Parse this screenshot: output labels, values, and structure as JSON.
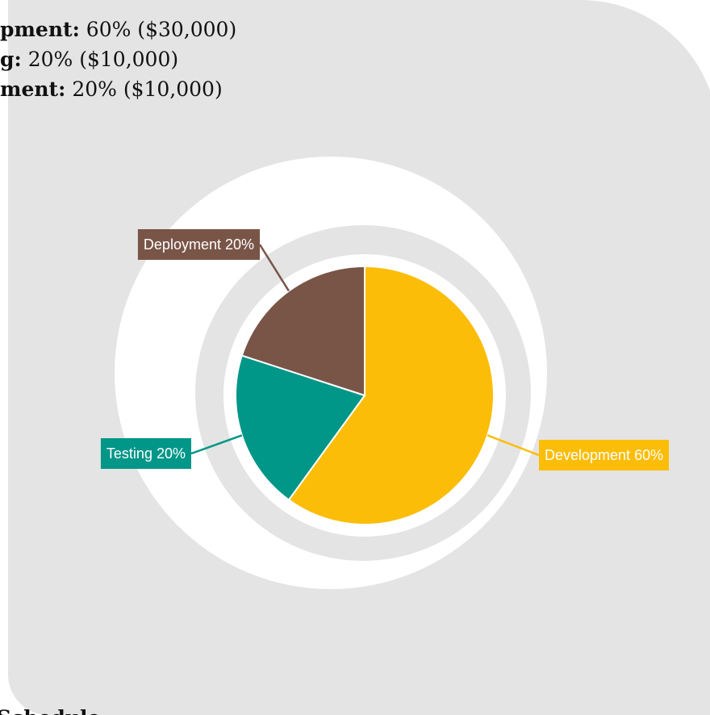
{
  "budget_lines": [
    {
      "label": "pment:",
      "text": "60% ($30,000)"
    },
    {
      "label": "g:",
      "text": "20% ($10,000)"
    },
    {
      "label": "ment:",
      "text": "20% ($10,000)"
    }
  ],
  "chart_data": {
    "type": "pie",
    "categories": [
      "Development",
      "Testing",
      "Deployment"
    ],
    "values": [
      60,
      20,
      20
    ],
    "value_labels": [
      "60%",
      "20%",
      "20%"
    ],
    "colors": [
      "#fbbd08",
      "#009688",
      "#795548"
    ]
  },
  "heading": "Schedule"
}
